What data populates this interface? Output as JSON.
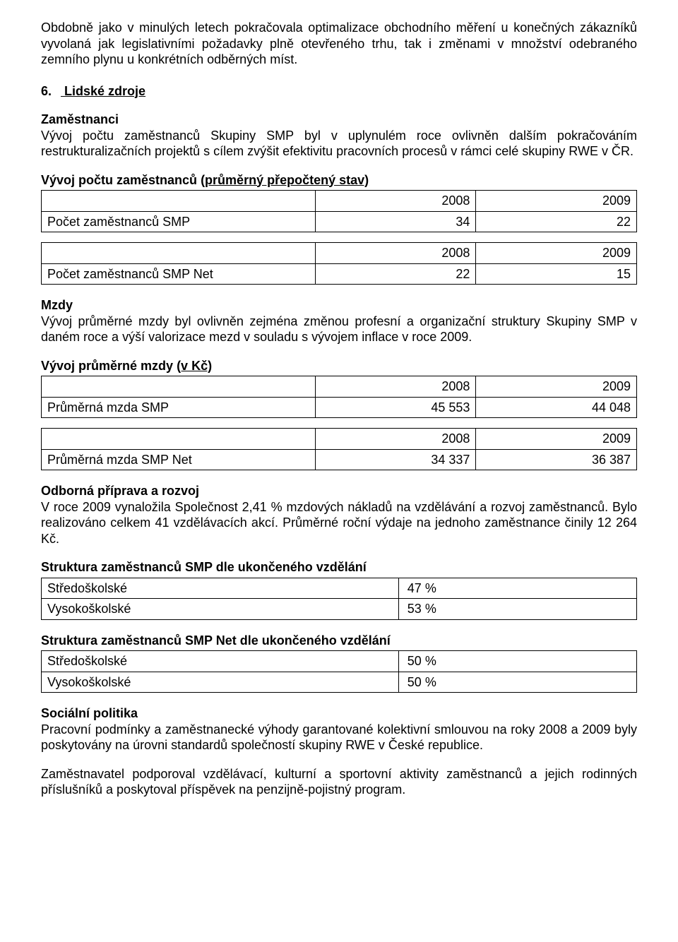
{
  "intro_p1": "Obdobně jako v minulých letech pokračovala optimalizace obchodního měření u konečných zákazníků vyvolaná jak legislativními požadavky plně otevřeného trhu, tak i změnami v množství odebraného zemního plynu u konkrétních odběrných míst.",
  "section6": {
    "num": "6.",
    "title": "Lidské zdroje"
  },
  "zamestnanci": {
    "heading": "Zaměstnanci",
    "text": "Vývoj počtu zaměstnanců Skupiny SMP byl v uplynulém roce ovlivněn dalším pokračováním restrukturalizačních projektů s cílem zvýšit efektivitu pracovních procesů v rámci celé skupiny RWE v ČR."
  },
  "table_emp": {
    "titleA": "Vývoj počtu zaměstnanců ",
    "titleB": "(průměrný přepočtený stav)",
    "cols": [
      "2008",
      "2009"
    ],
    "row1": {
      "label": "Počet zaměstnanců SMP",
      "v2008": "34",
      "v2009": "22"
    },
    "row2": {
      "label": "Počet zaměstnanců SMP Net",
      "v2008": "22",
      "v2009": "15"
    }
  },
  "mzdy": {
    "heading": "Mzdy",
    "text": "Vývoj průměrné mzdy byl ovlivněn zejména změnou profesní a organizační struktury Skupiny SMP v daném roce a výší valorizace mezd v souladu s vývojem inflace v roce 2009."
  },
  "table_wage": {
    "titleA": "Vývoj průměrné mzdy ",
    "titleB": "(v Kč)",
    "cols": [
      "2008",
      "2009"
    ],
    "row1": {
      "label": "Průměrná mzda SMP",
      "v2008": "45 553",
      "v2009": "44 048"
    },
    "row2": {
      "label": "Průměrná mzda SMP Net",
      "v2008": "34 337",
      "v2009": "36 387"
    }
  },
  "odborna": {
    "heading": "Odborná příprava a rozvoj",
    "text": "V roce 2009 vynaložila Společnost 2,41 % mzdových nákladů na vzdělávání a rozvoj zaměstnanců. Bylo realizováno celkem 41 vzdělávacích akcí. Průměrné roční výdaje na jednoho zaměstnance činily 12 264 Kč."
  },
  "edu_smp": {
    "heading": "Struktura zaměstnanců SMP dle ukončeného vzdělání",
    "rows": [
      {
        "label": "Středoškolské",
        "val": "47 %"
      },
      {
        "label": "Vysokoškolské",
        "val": "53 %"
      }
    ]
  },
  "edu_net": {
    "heading": "Struktura zaměstnanců SMP Net dle ukončeného vzdělání",
    "rows": [
      {
        "label": "Středoškolské",
        "val": "50 %"
      },
      {
        "label": "Vysokoškolské",
        "val": "50 %"
      }
    ]
  },
  "social": {
    "heading": "Sociální politika",
    "text1": "Pracovní podmínky a zaměstnanecké výhody garantované kolektivní smlouvou na roky 2008 a 2009 byly poskytovány na úrovni standardů společností skupiny RWE v České republice.",
    "text2": "Zaměstnavatel podporoval vzdělávací, kulturní a sportovní aktivity zaměstnanců a jejich rodinných příslušníků a poskytoval příspěvek na penzijně-pojistný program."
  }
}
